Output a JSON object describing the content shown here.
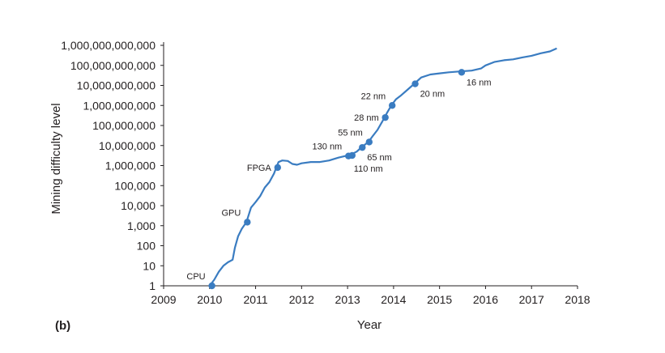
{
  "chart_data": {
    "type": "line",
    "panel_label": "(b)",
    "title": "",
    "xlabel": "Year",
    "ylabel": "Mining difficulty level",
    "xlim": [
      2009,
      2018
    ],
    "ylim": [
      1,
      1000000000000
    ],
    "yscale": "log",
    "grid": false,
    "line_color": "#3a7cc1",
    "x_ticks": [
      "2009",
      "2010",
      "2011",
      "2012",
      "2013",
      "2014",
      "2015",
      "2016",
      "2017",
      "2018"
    ],
    "y_ticks": [
      "1",
      "10",
      "100",
      "1,000",
      "10,000",
      "100,000",
      "1,000,000",
      "10,000,000",
      "100,000,000",
      "1,000,000,000",
      "10,000,000,000",
      "100,000,000,000",
      "1,000,000,000,000"
    ],
    "series": [
      {
        "points": [
          [
            2010.0,
            1
          ],
          [
            2010.1,
            2
          ],
          [
            2010.2,
            5
          ],
          [
            2010.3,
            10
          ],
          [
            2010.4,
            15
          ],
          [
            2010.5,
            20
          ],
          [
            2010.55,
            80
          ],
          [
            2010.62,
            300
          ],
          [
            2010.7,
            700
          ],
          [
            2010.8,
            1500
          ],
          [
            2010.9,
            8000
          ],
          [
            2011.0,
            15000
          ],
          [
            2011.1,
            30000
          ],
          [
            2011.2,
            80000
          ],
          [
            2011.3,
            150000
          ],
          [
            2011.4,
            400000
          ],
          [
            2011.45,
            800000
          ],
          [
            2011.5,
            1500000
          ],
          [
            2011.58,
            1800000
          ],
          [
            2011.7,
            1700000
          ],
          [
            2011.8,
            1200000
          ],
          [
            2011.9,
            1100000
          ],
          [
            2012.0,
            1300000
          ],
          [
            2012.2,
            1500000
          ],
          [
            2012.4,
            1500000
          ],
          [
            2012.6,
            1800000
          ],
          [
            2012.8,
            2500000
          ],
          [
            2012.95,
            3000000
          ],
          [
            2013.05,
            3300000
          ],
          [
            2013.2,
            5000000
          ],
          [
            2013.3,
            8000000
          ],
          [
            2013.45,
            15000000
          ],
          [
            2013.55,
            30000000
          ],
          [
            2013.65,
            60000000
          ],
          [
            2013.75,
            150000000
          ],
          [
            2013.85,
            400000000
          ],
          [
            2013.95,
            1000000000
          ],
          [
            2014.05,
            2000000000
          ],
          [
            2014.15,
            3000000000
          ],
          [
            2014.3,
            6000000000
          ],
          [
            2014.45,
            12000000000
          ],
          [
            2014.6,
            25000000000
          ],
          [
            2014.8,
            35000000000
          ],
          [
            2015.0,
            40000000000
          ],
          [
            2015.2,
            45000000000
          ],
          [
            2015.45,
            50000000000
          ],
          [
            2015.7,
            55000000000
          ],
          [
            2015.9,
            70000000000
          ],
          [
            2016.0,
            100000000000
          ],
          [
            2016.2,
            150000000000
          ],
          [
            2016.4,
            180000000000
          ],
          [
            2016.6,
            200000000000
          ],
          [
            2016.8,
            250000000000
          ],
          [
            2017.0,
            300000000000
          ],
          [
            2017.2,
            400000000000
          ],
          [
            2017.4,
            500000000000
          ],
          [
            2017.55,
            700000000000
          ]
        ]
      }
    ],
    "markers": [
      {
        "label": "CPU",
        "x": 2010.05,
        "y": 1,
        "anchor": "end",
        "side": "above-left"
      },
      {
        "label": "GPU",
        "x": 2010.82,
        "y": 1500,
        "anchor": "end",
        "side": "above-left"
      },
      {
        "label": "FPGA",
        "x": 2011.48,
        "y": 800000,
        "anchor": "end",
        "side": "left"
      },
      {
        "label": "130 nm",
        "x": 2013.02,
        "y": 3000000,
        "anchor": "end",
        "side": "above-left"
      },
      {
        "label": "110 nm",
        "x": 2013.1,
        "y": 3200000,
        "anchor": "start",
        "side": "below"
      },
      {
        "label": "65 nm",
        "x": 2013.32,
        "y": 8000000,
        "anchor": "start",
        "side": "below-right"
      },
      {
        "label": "55 nm",
        "x": 2013.47,
        "y": 15000000,
        "anchor": "end",
        "side": "above-left"
      },
      {
        "label": "28 nm",
        "x": 2013.82,
        "y": 250000000,
        "anchor": "end",
        "side": "left"
      },
      {
        "label": "22 nm",
        "x": 2013.97,
        "y": 1000000000,
        "anchor": "end",
        "side": "above-left"
      },
      {
        "label": "20 nm",
        "x": 2014.47,
        "y": 12000000000,
        "anchor": "start",
        "side": "below-right"
      },
      {
        "label": "16 nm",
        "x": 2015.48,
        "y": 45000000000,
        "anchor": "start",
        "side": "below-right"
      }
    ]
  }
}
